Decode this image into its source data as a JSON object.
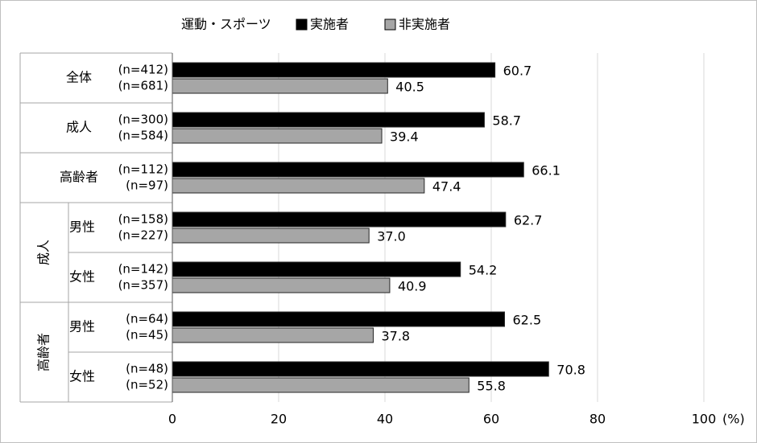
{
  "chart_data": {
    "type": "bar",
    "orientation": "horizontal",
    "legend_title": "運動・スポーツ",
    "categories": [
      "全体",
      "成人",
      "高齢者",
      "男性",
      "女性",
      "男性",
      "女性"
    ],
    "category_groups": [
      null,
      null,
      null,
      "成人",
      "成人",
      "高齢者",
      "高齢者"
    ],
    "series": [
      {
        "name": "実施者",
        "color": "#000000",
        "n_labels": [
          "(n=412)",
          "(n=300)",
          "(n=112)",
          "(n=158)",
          "(n=142)",
          "(n=64)",
          "(n=48)"
        ],
        "values": [
          60.7,
          58.7,
          66.1,
          62.7,
          54.2,
          62.5,
          70.8
        ],
        "value_labels": [
          "60.7",
          "58.7",
          "66.1",
          "62.7",
          "54.2",
          "62.5",
          "70.8"
        ]
      },
      {
        "name": "非実施者",
        "color": "#a6a6a6",
        "n_labels": [
          "(n=681)",
          "(n=584)",
          "(n=97)",
          "(n=227)",
          "(n=357)",
          "(n=45)",
          "(n=52)"
        ],
        "values": [
          40.5,
          39.4,
          47.4,
          37.0,
          40.9,
          37.8,
          55.8
        ],
        "value_labels": [
          "40.5",
          "39.4",
          "47.4",
          "37.0",
          "40.9",
          "37.8",
          "55.8"
        ]
      }
    ],
    "xlim": [
      0,
      100
    ],
    "xticks": [
      0,
      20,
      40,
      60,
      80,
      100
    ],
    "x_unit": "(%)",
    "grid": true
  }
}
